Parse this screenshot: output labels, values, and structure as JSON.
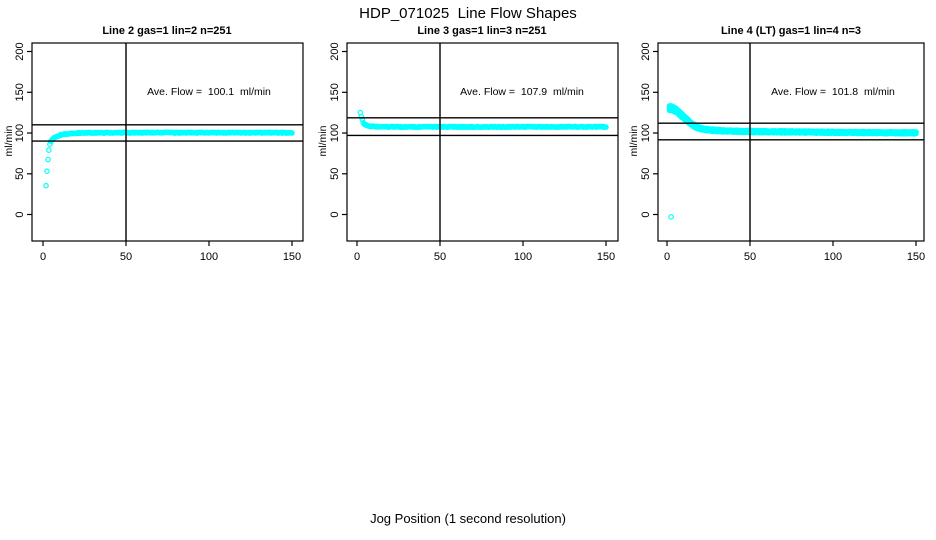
{
  "page": {
    "title": "HDP_071025  Line Flow Shapes",
    "xlabel": "Jog Position (1 second resolution)"
  },
  "colors": {
    "point": "#00FFFF",
    "axis": "#000000",
    "background": "#FFFFFF"
  },
  "axes": {
    "ylabel": "ml/min",
    "y_ticks": [
      0,
      50,
      100,
      150,
      200
    ],
    "x_ticks": [
      0,
      50,
      100,
      150
    ],
    "ylim": [
      0,
      200
    ],
    "xlim": [
      0,
      150
    ]
  },
  "chart_data": [
    {
      "type": "scatter",
      "title": "Line 2 gas=1 lin=2 n=251",
      "annotation": "Ave. Flow =  100.1  ml/min",
      "ave_flow_ml_min": 100.1,
      "n": 251,
      "samples": 250,
      "x_start": 1.8,
      "x_end": 150,
      "ref_lines_y": [
        110.1,
        90.1
      ],
      "ref_line_x": 50,
      "run_offsets": [
        0
      ],
      "noise": 0.5,
      "widen": 0,
      "anchors": [
        [
          1.8,
          35
        ],
        [
          2.6,
          60
        ],
        [
          3.2,
          72
        ],
        [
          3.8,
          83
        ],
        [
          4.4,
          88
        ],
        [
          5.2,
          91.5
        ],
        [
          6.5,
          94
        ],
        [
          8,
          95.8
        ],
        [
          10,
          97.2
        ],
        [
          13,
          98.5
        ],
        [
          17,
          99.4
        ],
        [
          22,
          99.9
        ],
        [
          30,
          100.2
        ],
        [
          50,
          100.4
        ],
        [
          150,
          100.4
        ]
      ],
      "outliers": []
    },
    {
      "type": "scatter",
      "title": "Line 3 gas=1 lin=3 n=251",
      "annotation": "Ave. Flow =  107.9  ml/min",
      "ave_flow_ml_min": 107.9,
      "n": 251,
      "samples": 250,
      "x_start": 2,
      "x_end": 150,
      "ref_lines_y": [
        118.7,
        97.1
      ],
      "ref_line_x": 50,
      "run_offsets": [
        0
      ],
      "noise": 0.5,
      "widen": 0,
      "anchors": [
        [
          2,
          125.5
        ],
        [
          2.8,
          118
        ],
        [
          3.6,
          113.5
        ],
        [
          4.4,
          111
        ],
        [
          5.4,
          109.7
        ],
        [
          7,
          108.8
        ],
        [
          9,
          108.2
        ],
        [
          12,
          107.8
        ],
        [
          18,
          107.6
        ],
        [
          30,
          107.5
        ],
        [
          60,
          107.5
        ],
        [
          150,
          107.6
        ]
      ],
      "outliers": []
    },
    {
      "type": "scatter",
      "title": "Line 4 (LT) gas=1 lin=4 n=3",
      "annotation": "Ave. Flow =  101.8  ml/min",
      "ave_flow_ml_min": 101.8,
      "n": 3,
      "samples": 250,
      "x_start": 1.5,
      "x_end": 150,
      "ref_lines_y": [
        112.0,
        91.6
      ],
      "ref_line_x": 50,
      "run_offsets": [
        0,
        0.9,
        -0.9
      ],
      "noise": 0.4,
      "widen": 2.5,
      "anchors": [
        [
          1.5,
          130.5
        ],
        [
          3,
          130.2
        ],
        [
          4.5,
          128.8
        ],
        [
          6,
          126.8
        ],
        [
          7.5,
          124.3
        ],
        [
          9,
          121.5
        ],
        [
          11,
          117.8
        ],
        [
          13,
          114
        ],
        [
          15,
          110.8
        ],
        [
          17,
          108.3
        ],
        [
          19,
          106.5
        ],
        [
          22,
          104.8
        ],
        [
          25,
          103.8
        ],
        [
          30,
          103
        ],
        [
          38,
          102.4
        ],
        [
          50,
          101.9
        ],
        [
          65,
          101.5
        ],
        [
          85,
          101.1
        ],
        [
          110,
          100.7
        ],
        [
          130,
          100.4
        ],
        [
          150,
          100.2
        ]
      ],
      "outliers": [
        [
          2.5,
          -3
        ]
      ]
    }
  ]
}
